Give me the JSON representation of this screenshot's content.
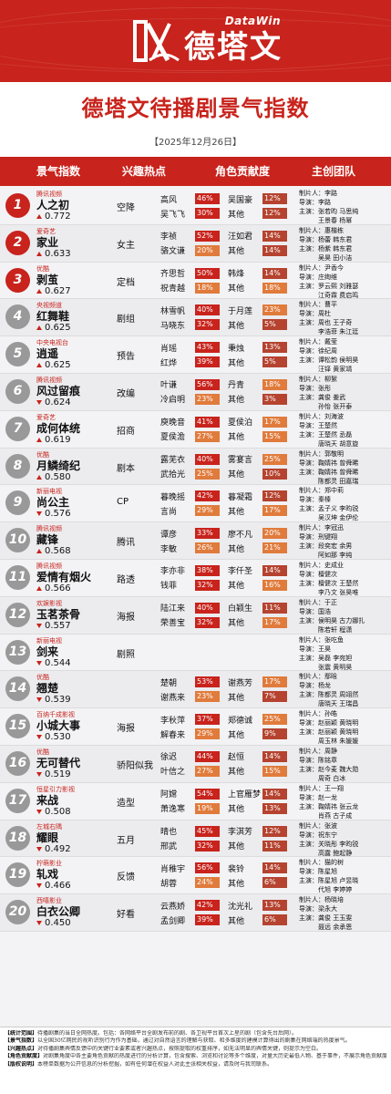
{
  "brand": {
    "en": "DataWin",
    "cn": "德塔文"
  },
  "title": "德塔文待播剧景气指数",
  "date": "【2025年12月26日】",
  "headers": [
    "景气指数",
    "兴趣热点",
    "角色贡献度",
    "主创团队"
  ],
  "colors": {
    "accent": "#c8231c",
    "high": "#c8231c",
    "mid": "#e07b3c",
    "low": "#b5432f"
  },
  "rows": [
    {
      "rank": "1",
      "platform": "腾讯视频",
      "name": "人之初",
      "score": "0.772",
      "trend": "up",
      "hot": "空降",
      "roles": [
        {
          "n": "高风",
          "p": "46%"
        },
        {
          "n": "吴飞飞",
          "p": "30%"
        },
        {
          "n": "吴国豪",
          "p": "12%"
        },
        {
          "n": "其他",
          "p": "12%"
        }
      ],
      "team": [
        "制片人：李路",
        "导演：李路",
        "主演：张若昀 马思纯",
        "　　　王景春 杨幂"
      ]
    },
    {
      "rank": "2",
      "platform": "爱奇艺",
      "name": "家业",
      "score": "0.633",
      "trend": "up",
      "hot": "女主",
      "roles": [
        {
          "n": "李祯",
          "p": "52%"
        },
        {
          "n": "骆文谦",
          "p": "20%"
        },
        {
          "n": "汪如君",
          "p": "14%"
        },
        {
          "n": "其他",
          "p": "14%"
        }
      ],
      "team": [
        "制片人：惠楷栋",
        "导演：杨蕾 韩东君",
        "主演：杨紫 韩东君",
        "　　　吴昊 田小洁"
      ]
    },
    {
      "rank": "3",
      "platform": "优酷",
      "name": "剥茧",
      "score": "0.627",
      "trend": "up",
      "hot": "定档",
      "roles": [
        {
          "n": "齐思哲",
          "p": "50%"
        },
        {
          "n": "祝青越",
          "p": "18%"
        },
        {
          "n": "韩烽",
          "p": "14%"
        },
        {
          "n": "其他",
          "p": "18%"
        }
      ],
      "team": [
        "制片人：尹香今",
        "导演：庄绚维",
        "主演：罗云熙 刘雅瑟",
        "　　　江奇霖 费启鸣"
      ]
    },
    {
      "rank": "4",
      "platform": "央视频道",
      "name": "红舞鞋",
      "score": "0.625",
      "trend": "up",
      "hot": "剧组",
      "roles": [
        {
          "n": "林雪帆",
          "p": "40%"
        },
        {
          "n": "马晓东",
          "p": "32%"
        },
        {
          "n": "于月莲",
          "p": "23%"
        },
        {
          "n": "其他",
          "p": "5%"
        }
      ],
      "team": [
        "制片人：曹平",
        "导演：周杜",
        "主演：周也 王子奇",
        "　　　李浩菲 朱江廷"
      ]
    },
    {
      "rank": "5",
      "platform": "中央电视台",
      "name": "逍遥",
      "score": "0.625",
      "trend": "up",
      "hot": "预告",
      "roles": [
        {
          "n": "肖瑶",
          "p": "43%"
        },
        {
          "n": "红烨",
          "p": "39%"
        },
        {
          "n": "秉烛",
          "p": "13%"
        },
        {
          "n": "其他",
          "p": "5%"
        }
      ],
      "team": [
        "制片人：戴莹",
        "导演：徐纪周",
        "主演：谭松韵 侯明昊",
        "　　　汪铎 黄家靖"
      ]
    },
    {
      "rank": "6",
      "platform": "腾讯视频",
      "name": "风过留痕",
      "score": "0.624",
      "trend": "down",
      "hot": "改编",
      "roles": [
        {
          "n": "叶谦",
          "p": "56%"
        },
        {
          "n": "冷启明",
          "p": "23%"
        },
        {
          "n": "丹青",
          "p": "18%"
        },
        {
          "n": "其他",
          "p": "3%"
        }
      ],
      "team": [
        "制片人：柳絮",
        "导演：张彤",
        "主演：龚俊 姜武",
        "　　　孙怡 张开泰"
      ]
    },
    {
      "rank": "7",
      "platform": "爱奇艺",
      "name": "成何体统",
      "score": "0.619",
      "trend": "up",
      "hot": "招商",
      "roles": [
        {
          "n": "庾晚音",
          "p": "41%"
        },
        {
          "n": "夏侯澹",
          "p": "27%"
        },
        {
          "n": "夏侯泊",
          "p": "17%"
        },
        {
          "n": "其他",
          "p": "15%"
        }
      ],
      "team": [
        "制片人：刘海波",
        "导演：王楚然",
        "主演：王楚然 丞磊",
        "　　　唐晓天 胡意旋"
      ]
    },
    {
      "rank": "8",
      "platform": "优酷",
      "name": "月鳞绮纪",
      "score": "0.580",
      "trend": "up",
      "hot": "剧本",
      "roles": [
        {
          "n": "露芜衣",
          "p": "40%"
        },
        {
          "n": "武拾光",
          "p": "25%"
        },
        {
          "n": "雾宴言",
          "p": "25%"
        },
        {
          "n": "其他",
          "p": "10%"
        }
      ],
      "team": [
        "制片人：郭敬明",
        "导演：鞠婧祎 曾舜晞",
        "主演：鞠婧祎 曾舜晞",
        "　　　陈都灵 田嘉瑞"
      ]
    },
    {
      "rank": "9",
      "platform": "新丽电视",
      "name": "尚公主",
      "score": "0.576",
      "trend": "down",
      "hot": "CP",
      "roles": [
        {
          "n": "暮晚摇",
          "p": "42%"
        },
        {
          "n": "言尚",
          "p": "29%"
        },
        {
          "n": "暮凝霜",
          "p": "12%"
        },
        {
          "n": "其他",
          "p": "17%"
        }
      ],
      "team": [
        "制片人：郑中莉",
        "导演：秦榛",
        "主演：孟子义 李昀锐",
        "　　　吴汉坤 金伊伦"
      ]
    },
    {
      "rank": "10",
      "platform": "腾讯视频",
      "name": "藏锋",
      "score": "0.568",
      "trend": "up",
      "hot": "腾讯",
      "roles": [
        {
          "n": "谭彦",
          "p": "33%"
        },
        {
          "n": "李敏",
          "p": "26%"
        },
        {
          "n": "廖不凡",
          "p": "20%"
        },
        {
          "n": "其他",
          "p": "21%"
        }
      ],
      "team": [
        "制片人：李冠迅",
        "导演：刑键翔",
        "主演：段奕宏 余男",
        "　　　阿如那 李纯"
      ]
    },
    {
      "rank": "11",
      "platform": "腾讯视频",
      "name": "爱情有烟火",
      "score": "0.566",
      "trend": "up",
      "hot": "路透",
      "roles": [
        {
          "n": "李亦非",
          "p": "38%"
        },
        {
          "n": "钱菲",
          "p": "32%"
        },
        {
          "n": "李仟圣",
          "p": "14%"
        },
        {
          "n": "其他",
          "p": "16%"
        }
      ],
      "team": [
        "制片人：史成业",
        "导演：檀健次",
        "主演：檀健次 王楚然",
        "　　　李乃文 张昊唯"
      ]
    },
    {
      "rank": "12",
      "platform": "欢娱影视",
      "name": "玉茗茶骨",
      "score": "0.557",
      "trend": "down",
      "hot": "海报",
      "roles": [
        {
          "n": "陆江来",
          "p": "40%"
        },
        {
          "n": "荣善宝",
          "p": "32%"
        },
        {
          "n": "白颖生",
          "p": "11%"
        },
        {
          "n": "其他",
          "p": "17%"
        }
      ],
      "team": [
        "制片人：于正",
        "导演：国浩",
        "主演：侯明昊 古力娜扎",
        "　　　陈若轩 程潇"
      ]
    },
    {
      "rank": "13",
      "platform": "新丽电视",
      "name": "剑来",
      "score": "0.544",
      "trend": "down",
      "hot": "剧照",
      "roles": [],
      "team": [
        "制片人：张吃鱼",
        "导演：王昊",
        "主演：吴磊 李宛妲",
        "　　　张震 黄明昊"
      ]
    },
    {
      "rank": "14",
      "platform": "优酷",
      "name": "翘楚",
      "score": "0.539",
      "trend": "down",
      "hot": "",
      "roles": [
        {
          "n": "楚朝",
          "p": "53%"
        },
        {
          "n": "谢燕来",
          "p": "23%"
        },
        {
          "n": "谢燕芳",
          "p": "17%"
        },
        {
          "n": "其他",
          "p": "7%"
        }
      ],
      "team": [
        "制片人：鄢晗",
        "导演：杨龙",
        "主演：陈都灵 周翊然",
        "　　　唐晓天 王瑞昌"
      ]
    },
    {
      "rank": "15",
      "platform": "百纳千成影视",
      "name": "小城大事",
      "score": "0.530",
      "trend": "down",
      "hot": "海报",
      "roles": [
        {
          "n": "李秋萍",
          "p": "37%"
        },
        {
          "n": "解春来",
          "p": "29%"
        },
        {
          "n": "郑德诚",
          "p": "25%"
        },
        {
          "n": "其他",
          "p": "9%"
        }
      ],
      "team": [
        "制片人：孙皓",
        "导演：赵丽颖 黄晓明",
        "主演：赵丽颖 黄晓明",
        "　　　周玉林 朱媛媛"
      ]
    },
    {
      "rank": "16",
      "platform": "优酷",
      "name": "无可替代",
      "score": "0.519",
      "trend": "down",
      "hot": "骄阳似我",
      "roles": [
        {
          "n": "徐迟",
          "p": "44%"
        },
        {
          "n": "叶信之",
          "p": "27%"
        },
        {
          "n": "赵恒",
          "p": "14%"
        },
        {
          "n": "其他",
          "p": "15%"
        }
      ],
      "team": [
        "制片人：周静",
        "导演：陈铭章",
        "主演：赵今麦 魏大勋",
        "　　　周奇 白冰"
      ]
    },
    {
      "rank": "17",
      "platform": "恒星引力影视",
      "name": "来战",
      "score": "0.508",
      "trend": "down",
      "hot": "造型",
      "roles": [
        {
          "n": "阿嫦",
          "p": "54%"
        },
        {
          "n": "萧逸寒",
          "p": "19%"
        },
        {
          "n": "上官雁梦",
          "p": "14%"
        },
        {
          "n": "其他",
          "p": "13%"
        }
      ],
      "team": [
        "制片人：王一翔",
        "导演：赵一龙",
        "主演：鞠婧祎 张云龙",
        "　　　肖燕 古子成"
      ]
    },
    {
      "rank": "18",
      "platform": "左城右隅",
      "name": "耀眼",
      "score": "0.492",
      "trend": "down",
      "hot": "五月",
      "roles": [
        {
          "n": "晴也",
          "p": "45%"
        },
        {
          "n": "邢武",
          "p": "32%"
        },
        {
          "n": "李淇芳",
          "p": "12%"
        },
        {
          "n": "其他",
          "p": "11%"
        }
      ],
      "team": [
        "制片人：张波",
        "导演：祝东宁",
        "主演：关晓彤 李昀锐",
        "　　　高露 鲍起静"
      ]
    },
    {
      "rank": "19",
      "platform": "柠萌影业",
      "name": "轧戏",
      "score": "0.466",
      "trend": "down",
      "hot": "反馈",
      "roles": [
        {
          "n": "肖稚宇",
          "p": "56%"
        },
        {
          "n": "胡蓉",
          "p": "24%"
        },
        {
          "n": "裴铃",
          "p": "14%"
        },
        {
          "n": "其他",
          "p": "6%"
        }
      ],
      "team": [
        "制片人：猫的树",
        "导演：陈星旭",
        "主演：陈星旭 卢昱晓",
        "　　　代旭 李婷婷"
      ]
    },
    {
      "rank": "20",
      "platform": "西嘻影业",
      "name": "白衣公卿",
      "score": "0.450",
      "trend": "down",
      "hot": "好看",
      "roles": [
        {
          "n": "云燕娇",
          "p": "42%"
        },
        {
          "n": "孟剑卿",
          "p": "39%"
        },
        {
          "n": "沈光礼",
          "p": "13%"
        },
        {
          "n": "其他",
          "p": "6%"
        }
      ],
      "team": [
        "制片人：杨晓培",
        "导演：梁永大",
        "主演：龚俊 王玉雯",
        "　　　聂远 余承恩"
      ]
    }
  ],
  "footer": [
    {
      "label": "【统计范围】",
      "text": "待播剧集的当日全网热度。包括：各网络平台全剧发布前的剧、各卫视平台首次上星的剧（包含先台后网）。"
    },
    {
      "label": "【景气指数】",
      "text": "以全国30亿网民的视听识别行为作为基础，通过对自然语言的理解与获取、和多维度的建模计算得出的剧集在网络端的热度景气。"
    },
    {
      "label": "【兴趣热点】",
      "text": "对待播剧集舆情反馈中的关键行业要素或者兴趣热点，按照提取的权重排序，如无法明显的舆情关键，则提示为空白。"
    },
    {
      "label": "【角色贡献度】",
      "text": "对剧集角度中各主要角色贡献的热度进行的分析计算，包含搜索、浏览和讨论等多个维度，对量大历史最低人物、基于事件，不展示角色贡献度。"
    },
    {
      "label": "【版权说明】",
      "text": "本榜单数据为公开信息的分析挖掘，如有任何潜在权益人对此主张相关权益，请及时与我司联系。"
    }
  ]
}
